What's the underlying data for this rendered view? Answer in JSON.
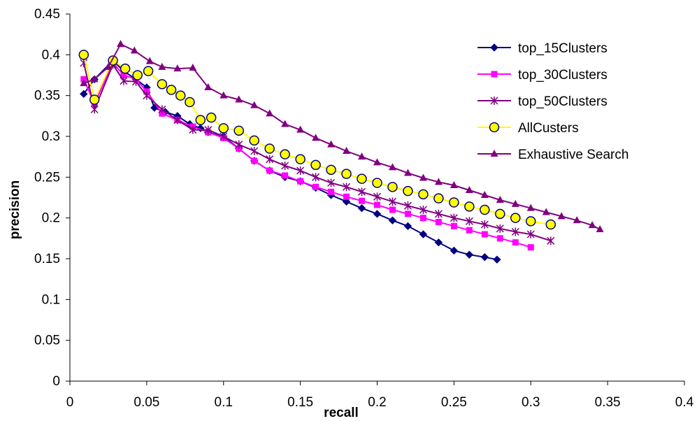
{
  "chart_data": {
    "type": "line",
    "title": "",
    "xlabel": "recall",
    "ylabel": "precision",
    "xlim": [
      0,
      0.4
    ],
    "ylim": [
      0,
      0.45
    ],
    "x_ticks": [
      "0",
      "0.05",
      "0.1",
      "0.15",
      "0.2",
      "0.25",
      "0.3",
      "0.35",
      "0.4"
    ],
    "y_ticks": [
      "0",
      "0.05",
      "0.1",
      "0.15",
      "0.2",
      "0.25",
      "0.3",
      "0.35",
      "0.4",
      "0.45"
    ],
    "grid": false,
    "legend_position": "top-right",
    "series": [
      {
        "name": "top_15Clusters",
        "color": "#000080",
        "marker": "diamond",
        "x": [
          0.009,
          0.016,
          0.028,
          0.035,
          0.043,
          0.05,
          0.055,
          0.062,
          0.07,
          0.078,
          0.085,
          0.09,
          0.1,
          0.11,
          0.12,
          0.13,
          0.14,
          0.15,
          0.16,
          0.17,
          0.18,
          0.19,
          0.2,
          0.21,
          0.22,
          0.23,
          0.24,
          0.25,
          0.26,
          0.27,
          0.278
        ],
        "y": [
          0.352,
          0.37,
          0.393,
          0.38,
          0.37,
          0.36,
          0.335,
          0.33,
          0.325,
          0.315,
          0.31,
          0.305,
          0.3,
          0.285,
          0.27,
          0.258,
          0.25,
          0.245,
          0.237,
          0.228,
          0.22,
          0.212,
          0.205,
          0.197,
          0.19,
          0.18,
          0.17,
          0.16,
          0.155,
          0.152,
          0.149
        ]
      },
      {
        "name": "top_30Clusters",
        "color": "#ff00ff",
        "marker": "square",
        "x": [
          0.009,
          0.016,
          0.028,
          0.035,
          0.043,
          0.05,
          0.06,
          0.07,
          0.08,
          0.09,
          0.1,
          0.11,
          0.12,
          0.13,
          0.14,
          0.15,
          0.16,
          0.17,
          0.18,
          0.19,
          0.2,
          0.21,
          0.22,
          0.23,
          0.24,
          0.25,
          0.26,
          0.27,
          0.28,
          0.29,
          0.3
        ],
        "y": [
          0.37,
          0.34,
          0.39,
          0.375,
          0.37,
          0.355,
          0.328,
          0.32,
          0.312,
          0.305,
          0.298,
          0.285,
          0.27,
          0.258,
          0.252,
          0.245,
          0.238,
          0.232,
          0.226,
          0.221,
          0.216,
          0.21,
          0.205,
          0.2,
          0.195,
          0.19,
          0.185,
          0.18,
          0.175,
          0.17,
          0.164
        ]
      },
      {
        "name": "top_50Clusters",
        "color": "#800080",
        "marker": "star",
        "x": [
          0.009,
          0.016,
          0.028,
          0.035,
          0.043,
          0.05,
          0.06,
          0.07,
          0.08,
          0.09,
          0.1,
          0.11,
          0.12,
          0.13,
          0.14,
          0.15,
          0.16,
          0.17,
          0.18,
          0.19,
          0.2,
          0.21,
          0.22,
          0.23,
          0.24,
          0.25,
          0.26,
          0.27,
          0.28,
          0.29,
          0.3,
          0.313
        ],
        "y": [
          0.39,
          0.333,
          0.388,
          0.368,
          0.367,
          0.35,
          0.333,
          0.32,
          0.308,
          0.308,
          0.3,
          0.29,
          0.282,
          0.272,
          0.264,
          0.258,
          0.25,
          0.243,
          0.238,
          0.232,
          0.226,
          0.22,
          0.215,
          0.21,
          0.205,
          0.2,
          0.196,
          0.192,
          0.187,
          0.183,
          0.18,
          0.172
        ]
      },
      {
        "name": "AllCusters",
        "color": "#ffff00",
        "marker": "circle",
        "x": [
          0.009,
          0.016,
          0.028,
          0.036,
          0.044,
          0.051,
          0.06,
          0.066,
          0.072,
          0.078,
          0.085,
          0.092,
          0.1,
          0.11,
          0.12,
          0.13,
          0.14,
          0.15,
          0.16,
          0.17,
          0.18,
          0.19,
          0.2,
          0.21,
          0.22,
          0.23,
          0.24,
          0.25,
          0.26,
          0.27,
          0.28,
          0.29,
          0.3,
          0.313
        ],
        "y": [
          0.4,
          0.345,
          0.393,
          0.383,
          0.375,
          0.38,
          0.364,
          0.357,
          0.35,
          0.342,
          0.32,
          0.323,
          0.31,
          0.307,
          0.295,
          0.285,
          0.278,
          0.272,
          0.265,
          0.259,
          0.254,
          0.248,
          0.243,
          0.238,
          0.233,
          0.229,
          0.224,
          0.219,
          0.214,
          0.21,
          0.205,
          0.2,
          0.196,
          0.192
        ]
      },
      {
        "name": "Exhaustive Search",
        "color": "#800080",
        "marker": "triangle",
        "x": [
          0.009,
          0.016,
          0.025,
          0.033,
          0.042,
          0.052,
          0.06,
          0.07,
          0.08,
          0.09,
          0.1,
          0.11,
          0.12,
          0.13,
          0.14,
          0.15,
          0.16,
          0.17,
          0.18,
          0.19,
          0.2,
          0.21,
          0.22,
          0.23,
          0.24,
          0.25,
          0.26,
          0.27,
          0.28,
          0.29,
          0.3,
          0.31,
          0.32,
          0.33,
          0.34,
          0.345
        ],
        "y": [
          0.365,
          0.37,
          0.385,
          0.413,
          0.405,
          0.392,
          0.385,
          0.383,
          0.384,
          0.36,
          0.35,
          0.345,
          0.338,
          0.328,
          0.315,
          0.308,
          0.298,
          0.29,
          0.282,
          0.275,
          0.268,
          0.262,
          0.255,
          0.249,
          0.244,
          0.24,
          0.234,
          0.228,
          0.222,
          0.217,
          0.212,
          0.207,
          0.202,
          0.197,
          0.191,
          0.186
        ]
      }
    ]
  }
}
